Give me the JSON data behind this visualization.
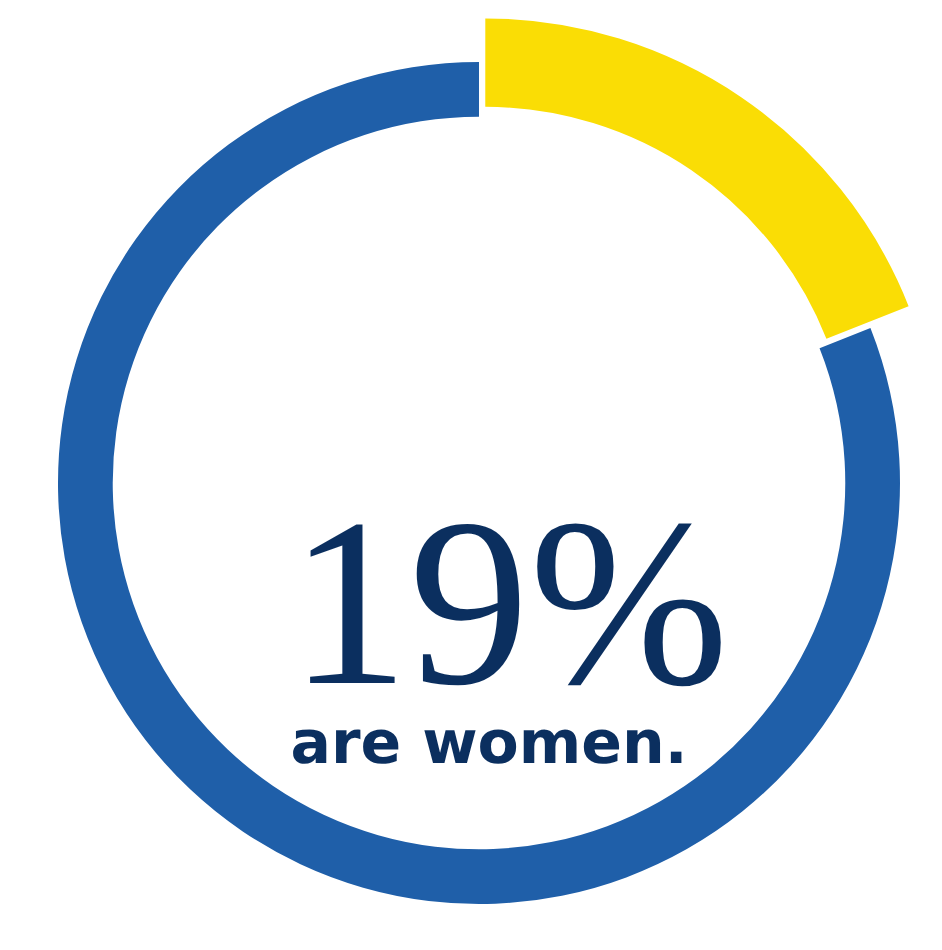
{
  "chart_data": {
    "type": "donut",
    "categories": [
      null,
      null
    ],
    "values": [
      19,
      81
    ],
    "colors": [
      "#fadd05",
      "#1f5fa9"
    ],
    "annotations": [
      "19%",
      "are women."
    ],
    "legend": false
  }
}
